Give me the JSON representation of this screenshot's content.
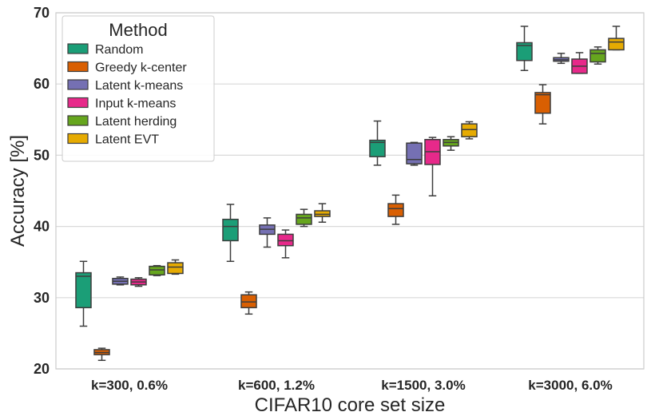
{
  "chart_data": {
    "type": "box",
    "xlabel": "CIFAR10 core set size",
    "ylabel": "Accuracy [%]",
    "ylim": [
      20,
      70
    ],
    "yticks": [
      20,
      30,
      40,
      50,
      60,
      70
    ],
    "grid": "horizontal",
    "legend_title": "Method",
    "legend_position": "top-left",
    "categories": [
      "k=300, 0.6%",
      "k=600, 1.2%",
      "k=1500, 3.0%",
      "k=3000, 6.0%"
    ],
    "series": [
      {
        "name": "Random",
        "color": "#1b9e77",
        "boxes": [
          {
            "min": 26.0,
            "q1": 28.6,
            "median": 33.0,
            "q3": 33.5,
            "max": 35.1
          },
          {
            "min": 35.1,
            "q1": 38.0,
            "median": 40.0,
            "q3": 41.0,
            "max": 43.1
          },
          {
            "min": 48.6,
            "q1": 49.8,
            "median": 51.8,
            "q3": 52.1,
            "max": 54.8
          },
          {
            "min": 61.9,
            "q1": 63.3,
            "median": 65.4,
            "q3": 65.8,
            "max": 68.1
          }
        ]
      },
      {
        "name": "Greedy k-center",
        "color": "#d95f02",
        "boxes": [
          {
            "min": 21.2,
            "q1": 22.0,
            "median": 22.3,
            "q3": 22.7,
            "max": 22.9
          },
          {
            "min": 27.7,
            "q1": 28.6,
            "median": 29.4,
            "q3": 30.4,
            "max": 30.8
          },
          {
            "min": 40.3,
            "q1": 41.4,
            "median": 42.5,
            "q3": 43.2,
            "max": 44.4
          },
          {
            "min": 54.4,
            "q1": 55.9,
            "median": 58.5,
            "q3": 58.8,
            "max": 59.9
          }
        ]
      },
      {
        "name": "Latent k-means",
        "color": "#7570b3",
        "boxes": [
          {
            "min": 31.8,
            "q1": 31.9,
            "median": 32.3,
            "q3": 32.7,
            "max": 32.9
          },
          {
            "min": 37.1,
            "q1": 38.9,
            "median": 39.6,
            "q3": 40.2,
            "max": 41.2
          },
          {
            "min": 48.6,
            "q1": 48.8,
            "median": 49.4,
            "q3": 51.7,
            "max": 51.8
          },
          {
            "min": 62.9,
            "q1": 63.2,
            "median": 63.4,
            "q3": 63.7,
            "max": 64.3
          }
        ]
      },
      {
        "name": "Input k-means",
        "color": "#e7298a",
        "boxes": [
          {
            "min": 31.6,
            "q1": 31.8,
            "median": 32.2,
            "q3": 32.6,
            "max": 32.8
          },
          {
            "min": 35.6,
            "q1": 37.3,
            "median": 38.0,
            "q3": 38.9,
            "max": 39.5
          },
          {
            "min": 44.3,
            "q1": 48.7,
            "median": 50.5,
            "q3": 52.2,
            "max": 52.5
          },
          {
            "min": 61.5,
            "q1": 61.5,
            "median": 62.5,
            "q3": 63.5,
            "max": 64.4
          }
        ]
      },
      {
        "name": "Latent herding",
        "color": "#66a61e",
        "boxes": [
          {
            "min": 33.1,
            "q1": 33.2,
            "median": 33.9,
            "q3": 34.4,
            "max": 34.5
          },
          {
            "min": 40.0,
            "q1": 40.3,
            "median": 41.2,
            "q3": 41.7,
            "max": 42.4
          },
          {
            "min": 50.7,
            "q1": 51.3,
            "median": 51.8,
            "q3": 52.2,
            "max": 52.6
          },
          {
            "min": 62.8,
            "q1": 63.1,
            "median": 64.3,
            "q3": 64.8,
            "max": 65.2
          }
        ]
      },
      {
        "name": "Latent EVT",
        "color": "#e6ab02",
        "boxes": [
          {
            "min": 33.3,
            "q1": 33.4,
            "median": 34.3,
            "q3": 34.9,
            "max": 35.3
          },
          {
            "min": 40.6,
            "q1": 41.4,
            "median": 41.7,
            "q3": 42.2,
            "max": 43.2
          },
          {
            "min": 52.3,
            "q1": 52.6,
            "median": 53.6,
            "q3": 54.4,
            "max": 54.7
          },
          {
            "min": 64.8,
            "q1": 64.8,
            "median": 65.9,
            "q3": 66.4,
            "max": 68.1
          }
        ]
      }
    ]
  }
}
